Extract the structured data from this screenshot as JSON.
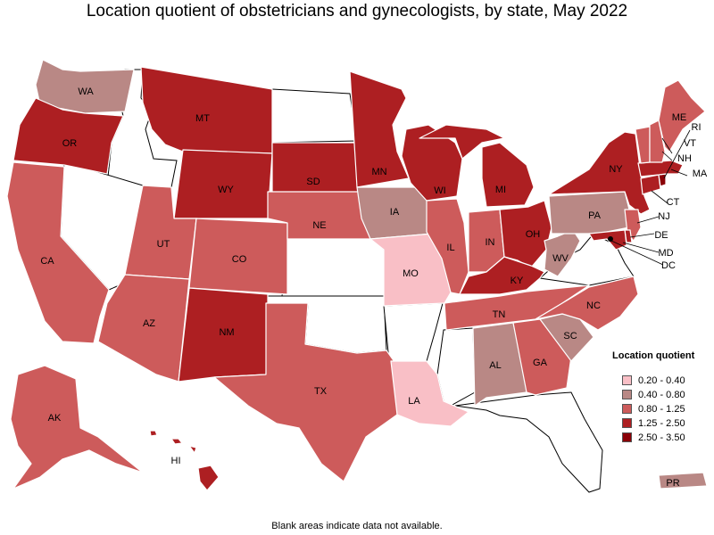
{
  "title": "Location quotient of obstetricians and gynecologists, by state, May 2022",
  "footnote": "Blank areas indicate data not available.",
  "legend": {
    "title": "Location quotient",
    "items": [
      {
        "label": "0.20 - 0.40",
        "color": "#f9bfc6"
      },
      {
        "label": "0.40 - 0.80",
        "color": "#b98885"
      },
      {
        "label": "0.80 - 1.25",
        "color": "#cd5b5b"
      },
      {
        "label": "1.25 - 2.50",
        "color": "#ad1f22"
      },
      {
        "label": "2.50 - 3.50",
        "color": "#8a0007"
      }
    ]
  },
  "states": {
    "WA": {
      "label": "WA",
      "bin": 1
    },
    "OR": {
      "label": "OR",
      "bin": 3
    },
    "CA": {
      "label": "CA",
      "bin": 2
    },
    "ID": {
      "label": "",
      "bin": null
    },
    "NV": {
      "label": "",
      "bin": null
    },
    "MT": {
      "label": "MT",
      "bin": 3
    },
    "WY": {
      "label": "WY",
      "bin": 3
    },
    "UT": {
      "label": "UT",
      "bin": 2
    },
    "AZ": {
      "label": "AZ",
      "bin": 2
    },
    "CO": {
      "label": "CO",
      "bin": 2
    },
    "NM": {
      "label": "NM",
      "bin": 3
    },
    "ND": {
      "label": "",
      "bin": null
    },
    "SD": {
      "label": "SD",
      "bin": 3
    },
    "NE": {
      "label": "NE",
      "bin": 2
    },
    "KS": {
      "label": "",
      "bin": null
    },
    "OK": {
      "label": "",
      "bin": null
    },
    "TX": {
      "label": "TX",
      "bin": 2
    },
    "MN": {
      "label": "MN",
      "bin": 3
    },
    "IA": {
      "label": "IA",
      "bin": 1
    },
    "MO": {
      "label": "MO",
      "bin": 0
    },
    "AR": {
      "label": "",
      "bin": null
    },
    "LA": {
      "label": "LA",
      "bin": 0
    },
    "WI": {
      "label": "WI",
      "bin": 3
    },
    "IL": {
      "label": "IL",
      "bin": 2
    },
    "MI": {
      "label": "MI",
      "bin": 3
    },
    "IN": {
      "label": "IN",
      "bin": 2
    },
    "OH": {
      "label": "OH",
      "bin": 3
    },
    "KY": {
      "label": "KY",
      "bin": 3
    },
    "TN": {
      "label": "TN",
      "bin": 2
    },
    "MS": {
      "label": "",
      "bin": null
    },
    "AL": {
      "label": "AL",
      "bin": 1
    },
    "GA": {
      "label": "GA",
      "bin": 2
    },
    "FL": {
      "label": "",
      "bin": null
    },
    "SC": {
      "label": "SC",
      "bin": 1
    },
    "NC": {
      "label": "NC",
      "bin": 2
    },
    "VA": {
      "label": "",
      "bin": null
    },
    "WV": {
      "label": "WV",
      "bin": 1
    },
    "PA": {
      "label": "PA",
      "bin": 1
    },
    "NY": {
      "label": "NY",
      "bin": 3
    },
    "NJ": {
      "label": "NJ",
      "bin": 2
    },
    "DE": {
      "label": "DE",
      "bin": 3
    },
    "MD": {
      "label": "MD",
      "bin": 3
    },
    "DC": {
      "label": "DC",
      "bin": 4
    },
    "CT": {
      "label": "CT",
      "bin": 3
    },
    "RI": {
      "label": "RI",
      "bin": 4
    },
    "MA": {
      "label": "MA",
      "bin": 3
    },
    "VT": {
      "label": "VT",
      "bin": 2
    },
    "NH": {
      "label": "NH",
      "bin": 2
    },
    "ME": {
      "label": "ME",
      "bin": 2
    },
    "AK": {
      "label": "AK",
      "bin": 2
    },
    "HI": {
      "label": "HI",
      "bin": 3
    },
    "PR": {
      "label": "PR",
      "bin": 1
    }
  }
}
